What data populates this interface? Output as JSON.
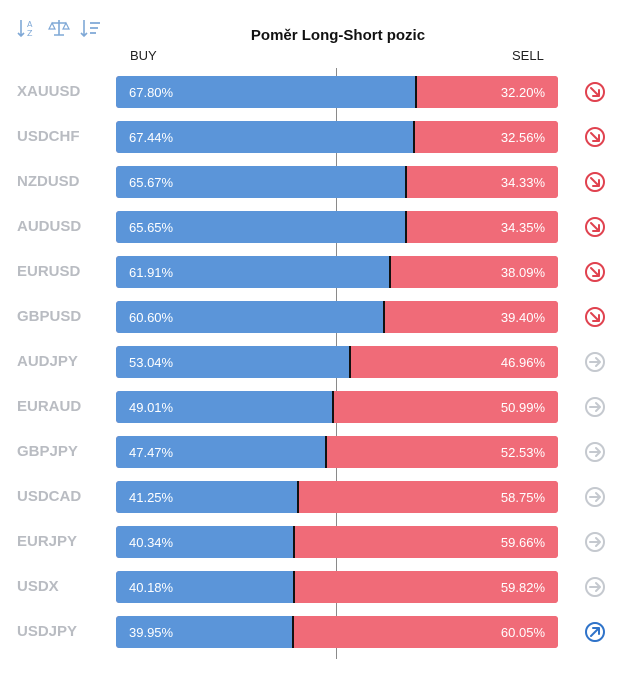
{
  "toolbar": {
    "icons": [
      "sort-alpha-icon",
      "balance-scale-icon",
      "sort-list-icon"
    ]
  },
  "colors": {
    "buy": "#5b95d9",
    "sell": "#f06b78",
    "symbol_text": "#b9bcc2",
    "trend_down": "#e0424f",
    "trend_neutral": "#c5c9cf",
    "trend_up": "#2f73c9"
  },
  "chart_data": {
    "type": "bar",
    "title": "Poměr Long-Short pozic",
    "buy_label": "BUY",
    "sell_label": "SELL",
    "rows": [
      {
        "symbol": "XAUUSD",
        "buy": 67.8,
        "sell": 32.2,
        "buy_text": "67.80%",
        "sell_text": "32.20%",
        "trend": "down"
      },
      {
        "symbol": "USDCHF",
        "buy": 67.44,
        "sell": 32.56,
        "buy_text": "67.44%",
        "sell_text": "32.56%",
        "trend": "down"
      },
      {
        "symbol": "NZDUSD",
        "buy": 65.67,
        "sell": 34.33,
        "buy_text": "65.67%",
        "sell_text": "34.33%",
        "trend": "down"
      },
      {
        "symbol": "AUDUSD",
        "buy": 65.65,
        "sell": 34.35,
        "buy_text": "65.65%",
        "sell_text": "34.35%",
        "trend": "down"
      },
      {
        "symbol": "EURUSD",
        "buy": 61.91,
        "sell": 38.09,
        "buy_text": "61.91%",
        "sell_text": "38.09%",
        "trend": "down"
      },
      {
        "symbol": "GBPUSD",
        "buy": 60.6,
        "sell": 39.4,
        "buy_text": "60.60%",
        "sell_text": "39.40%",
        "trend": "down"
      },
      {
        "symbol": "AUDJPY",
        "buy": 53.04,
        "sell": 46.96,
        "buy_text": "53.04%",
        "sell_text": "46.96%",
        "trend": "neutral"
      },
      {
        "symbol": "EURAUD",
        "buy": 49.01,
        "sell": 50.99,
        "buy_text": "49.01%",
        "sell_text": "50.99%",
        "trend": "neutral"
      },
      {
        "symbol": "GBPJPY",
        "buy": 47.47,
        "sell": 52.53,
        "buy_text": "47.47%",
        "sell_text": "52.53%",
        "trend": "neutral"
      },
      {
        "symbol": "USDCAD",
        "buy": 41.25,
        "sell": 58.75,
        "buy_text": "41.25%",
        "sell_text": "58.75%",
        "trend": "neutral"
      },
      {
        "symbol": "EURJPY",
        "buy": 40.34,
        "sell": 59.66,
        "buy_text": "40.34%",
        "sell_text": "59.66%",
        "trend": "neutral"
      },
      {
        "symbol": "USDX",
        "buy": 40.18,
        "sell": 59.82,
        "buy_text": "40.18%",
        "sell_text": "59.82%",
        "trend": "neutral"
      },
      {
        "symbol": "USDJPY",
        "buy": 39.95,
        "sell": 60.05,
        "buy_text": "39.95%",
        "sell_text": "60.05%",
        "trend": "up"
      }
    ]
  }
}
